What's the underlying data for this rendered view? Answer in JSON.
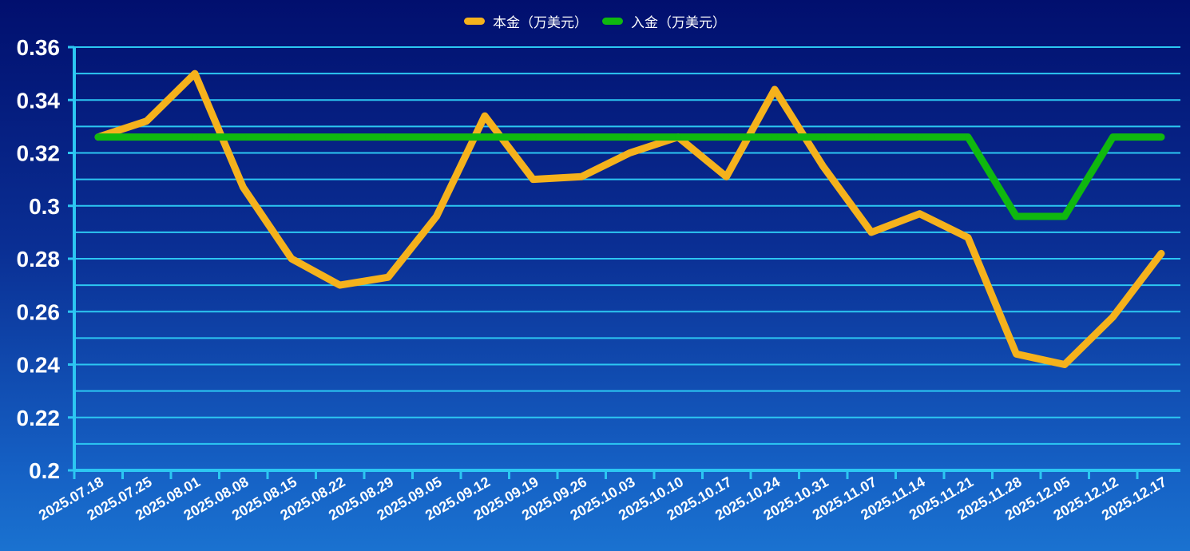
{
  "chart_data": {
    "type": "line",
    "title": "",
    "xlabel": "",
    "ylabel": "",
    "legend_position": "top-center",
    "grid": true,
    "ylim": [
      0.2,
      0.36
    ],
    "yticks": [
      "0.2",
      "0.22",
      "0.24",
      "0.26",
      "0.28",
      "0.3",
      "0.32",
      "0.34",
      "0.36"
    ],
    "x_tick_labels": [
      "2025.07.18",
      "2025.07.25",
      "2025.08.01",
      "2025.08.08",
      "2025.08.15",
      "2025.08.22",
      "2025.08.29",
      "2025.09.05",
      "2025.09.12",
      "2025.09.19",
      "2025.09.26",
      "2025.10.03",
      "2025.10.10",
      "2025.10.17",
      "2025.10.24",
      "2025.10.31",
      "2025.11.07",
      "2025.11.14",
      "2025.11.21",
      "2025.11.28",
      "2025.12.05",
      "2025.12.12",
      "2025.12.17"
    ],
    "series": [
      {
        "name": "本金（万美元）",
        "color": "#f5b21c",
        "values": [
          0.326,
          0.332,
          0.35,
          0.307,
          0.28,
          0.27,
          0.273,
          0.296,
          0.334,
          0.31,
          0.311,
          0.32,
          0.326,
          0.311,
          0.344,
          0.315,
          0.29,
          0.297,
          0.288,
          0.244,
          0.24,
          0.258,
          0.282
        ]
      },
      {
        "name": "入金（万美元）",
        "color": "#0fb80f",
        "values": [
          0.326,
          0.326,
          0.326,
          0.326,
          0.326,
          0.326,
          0.326,
          0.326,
          0.326,
          0.326,
          0.326,
          0.326,
          0.326,
          0.326,
          0.326,
          0.326,
          0.326,
          0.326,
          0.326,
          0.296,
          0.296,
          0.326,
          0.326
        ]
      }
    ]
  }
}
